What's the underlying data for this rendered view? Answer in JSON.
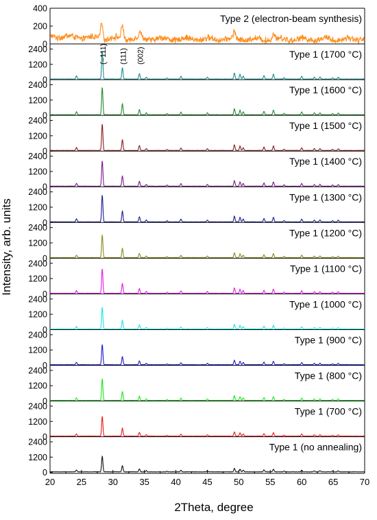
{
  "chart_data": {
    "type": "line",
    "xlabel": "2Theta, degree",
    "ylabel": "Intensity, arb. units",
    "xlim": [
      20,
      70
    ],
    "x_ticks": [
      "20",
      "25",
      "30",
      "35",
      "40",
      "45",
      "50",
      "55",
      "60",
      "65",
      "70"
    ],
    "grid": false,
    "peaks": {
      "main": [
        {
          "x": 28.3,
          "h": 2250
        },
        {
          "x": 31.5,
          "h": 900
        },
        {
          "x": 34.2,
          "h": 420
        },
        {
          "x": 24.2,
          "h": 250
        },
        {
          "x": 35.3,
          "h": 160
        },
        {
          "x": 38.6,
          "h": 90
        },
        {
          "x": 40.8,
          "h": 220
        },
        {
          "x": 45.0,
          "h": 160
        },
        {
          "x": 49.3,
          "h": 480
        },
        {
          "x": 50.2,
          "h": 380
        },
        {
          "x": 50.7,
          "h": 240
        },
        {
          "x": 54.0,
          "h": 280
        },
        {
          "x": 55.5,
          "h": 380
        },
        {
          "x": 57.2,
          "h": 110
        },
        {
          "x": 60.0,
          "h": 230
        },
        {
          "x": 62.0,
          "h": 150
        },
        {
          "x": 62.9,
          "h": 160
        },
        {
          "x": 64.9,
          "h": 100
        },
        {
          "x": 65.8,
          "h": 140
        }
      ],
      "type2": [
        {
          "x": 28.2,
          "h": 160
        },
        {
          "x": 31.5,
          "h": 150
        },
        {
          "x": 34.3,
          "h": 70
        },
        {
          "x": 49.3,
          "h": 80
        },
        {
          "x": 55.5,
          "h": 60
        }
      ]
    },
    "annotations": [
      {
        "text": "(−111)",
        "x": 28.4
      },
      {
        "text": "(111)",
        "x": 31.6
      },
      {
        "text": "(002)",
        "x": 34.3
      }
    ],
    "panels": [
      {
        "label": "Type 2 (electron-beam synthesis)",
        "color": "#ff8c1a",
        "ylim": [
          0,
          400
        ],
        "yticks": [
          "0",
          "200",
          "400"
        ],
        "scale": 1.0,
        "noise": 60,
        "base": 40
      },
      {
        "label": "Type 1 (1700 °C)",
        "color": "#1a8f8f",
        "ylim": [
          0,
          2800
        ],
        "yticks": [
          "0",
          "1200",
          "2400"
        ],
        "scale": 1.0,
        "noise": 25,
        "base": 40
      },
      {
        "label": "Type 1 (1600 °C)",
        "color": "#1f8a2e",
        "ylim": [
          0,
          2800
        ],
        "yticks": [
          "0",
          "1200",
          "2400"
        ],
        "scale": 0.97,
        "noise": 25,
        "base": 40
      },
      {
        "label": "Type 1 (1500 °C)",
        "color": "#8b1a1a",
        "ylim": [
          0,
          2800
        ],
        "yticks": [
          "0",
          "1200",
          "2400"
        ],
        "scale": 0.93,
        "noise": 25,
        "base": 40
      },
      {
        "label": "Type 1 (1400 °C)",
        "color": "#7a1a8a",
        "ylim": [
          0,
          2800
        ],
        "yticks": [
          "0",
          "1200",
          "2400"
        ],
        "scale": 0.9,
        "noise": 25,
        "base": 40
      },
      {
        "label": "Type 1 (1300 °C)",
        "color": "#1a1a8f",
        "ylim": [
          0,
          2800
        ],
        "yticks": [
          "0",
          "1200",
          "2400"
        ],
        "scale": 0.95,
        "noise": 25,
        "base": 40
      },
      {
        "label": "Type 1 (1200 °C)",
        "color": "#8a8a1a",
        "ylim": [
          0,
          2800
        ],
        "yticks": [
          "0",
          "1200",
          "2400"
        ],
        "scale": 0.8,
        "noise": 25,
        "base": 40
      },
      {
        "label": "Type 1 (1100 °C)",
        "color": "#e619e6",
        "ylim": [
          0,
          2800
        ],
        "yticks": [
          "0",
          "1200",
          "2400"
        ],
        "scale": 0.87,
        "noise": 25,
        "base": 40
      },
      {
        "label": "Type 1 (1000 °C)",
        "color": "#19e6e6",
        "ylim": [
          0,
          2800
        ],
        "yticks": [
          "0",
          "1200",
          "2400"
        ],
        "scale": 0.77,
        "noise": 25,
        "base": 40
      },
      {
        "label": "Type 1 (900 °C)",
        "color": "#1a1acc",
        "ylim": [
          0,
          2800
        ],
        "yticks": [
          "0",
          "1200",
          "2400"
        ],
        "scale": 0.72,
        "noise": 25,
        "base": 40
      },
      {
        "label": "Type 1 (800 °C)",
        "color": "#19e619",
        "ylim": [
          0,
          2800
        ],
        "yticks": [
          "0",
          "1200",
          "2400"
        ],
        "scale": 0.77,
        "noise": 25,
        "base": 40
      },
      {
        "label": "Type 1 (700 °C)",
        "color": "#e61919",
        "ylim": [
          0,
          2800
        ],
        "yticks": [
          "0",
          "1200",
          "2400"
        ],
        "scale": 0.7,
        "noise": 25,
        "base": 40
      },
      {
        "label": "Type 1 (no annealing)",
        "color": "#111111",
        "ylim": [
          0,
          2800
        ],
        "yticks": [
          "0",
          "1200",
          "2400"
        ],
        "scale": 0.55,
        "noise": 25,
        "base": 40
      }
    ]
  }
}
